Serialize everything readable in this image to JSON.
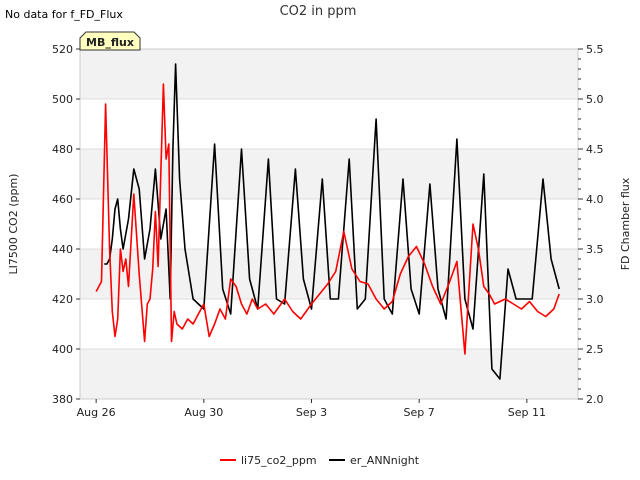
{
  "no_data_message": "No data for f_FD_Flux",
  "badge": {
    "label": "MB_flux"
  },
  "chart_data": {
    "type": "line",
    "title": "CO2 in ppm",
    "xlabel": "",
    "ylabel": "LI7500 CO2 (ppm)",
    "y2label": "FD Chamber flux",
    "xlim_days": [
      -0.6,
      17.9
    ],
    "ylim": [
      380,
      520
    ],
    "y2lim": [
      2.0,
      5.5
    ],
    "grid": true,
    "x_ticks": [
      {
        "day": 0,
        "label": "Aug 26"
      },
      {
        "day": 4,
        "label": "Aug 30"
      },
      {
        "day": 8,
        "label": "Sep 3"
      },
      {
        "day": 12,
        "label": "Sep 7"
      },
      {
        "day": 16,
        "label": "Sep 11"
      }
    ],
    "y_ticks": [
      380,
      400,
      420,
      440,
      460,
      480,
      500,
      520
    ],
    "y_tick_labels": [
      "380",
      "400",
      "420",
      "440",
      "460",
      "480",
      "500",
      "520"
    ],
    "y2_ticks": [
      2.0,
      2.5,
      3.0,
      3.5,
      4.0,
      4.5,
      5.0,
      5.5
    ],
    "y2_tick_labels": [
      "2.0",
      "2.5",
      "3.0",
      "3.5",
      "4.0",
      "4.5",
      "5.0",
      "5.5"
    ],
    "legend_position": "bottom-center",
    "series": [
      {
        "name": "li75_co2_ppm",
        "axis": "left",
        "color": "#ff0000",
        "x": [
          0.0,
          0.2,
          0.35,
          0.5,
          0.6,
          0.7,
          0.8,
          0.9,
          1.0,
          1.1,
          1.2,
          1.4,
          1.6,
          1.8,
          1.9,
          2.0,
          2.1,
          2.2,
          2.3,
          2.5,
          2.6,
          2.7,
          2.8,
          2.9,
          3.0,
          3.2,
          3.4,
          3.6,
          3.8,
          4.0,
          4.2,
          4.4,
          4.6,
          4.8,
          5.0,
          5.2,
          5.4,
          5.6,
          5.8,
          6.0,
          6.3,
          6.6,
          7.0,
          7.3,
          7.6,
          8.0,
          8.3,
          8.6,
          8.9,
          9.2,
          9.5,
          9.8,
          10.1,
          10.4,
          10.7,
          11.0,
          11.3,
          11.6,
          11.9,
          12.2,
          12.5,
          12.8,
          13.1,
          13.4,
          13.7,
          14.0,
          14.2,
          14.4,
          14.6,
          14.8,
          15.0,
          15.2,
          15.5,
          15.8,
          16.1,
          16.4,
          16.7,
          17.0,
          17.2
        ],
        "values": [
          423,
          427,
          498,
          440,
          415,
          405,
          412,
          440,
          431,
          436,
          425,
          462,
          430,
          403,
          418,
          420,
          432,
          455,
          433,
          506,
          476,
          482,
          403,
          415,
          410,
          408,
          412,
          410,
          414,
          418,
          405,
          410,
          416,
          412,
          428,
          425,
          418,
          414,
          420,
          416,
          418,
          414,
          420,
          415,
          412,
          418,
          422,
          426,
          431,
          447,
          432,
          427,
          426,
          420,
          416,
          419,
          430,
          437,
          441,
          434,
          425,
          418,
          426,
          435,
          398,
          450,
          440,
          425,
          422,
          418,
          419,
          420,
          418,
          416,
          419,
          415,
          413,
          416,
          422
        ]
      },
      {
        "name": "er_ANNnight",
        "axis": "right",
        "color": "#000000",
        "x": [
          0.3,
          0.4,
          0.5,
          0.6,
          0.7,
          0.8,
          0.9,
          1.0,
          1.2,
          1.4,
          1.6,
          1.8,
          2.0,
          2.2,
          2.4,
          2.6,
          2.75,
          2.85,
          2.95,
          3.1,
          3.3,
          3.6,
          4.0,
          4.4,
          4.7,
          5.0,
          5.4,
          5.7,
          6.0,
          6.4,
          6.7,
          7.0,
          7.4,
          7.7,
          8.0,
          8.4,
          8.7,
          9.0,
          9.4,
          9.7,
          10.0,
          10.4,
          10.7,
          11.0,
          11.4,
          11.7,
          12.0,
          12.4,
          12.7,
          13.0,
          13.4,
          13.7,
          14.0,
          14.4,
          14.7,
          15.0,
          15.3,
          15.6,
          15.9,
          16.2,
          16.6,
          16.9,
          17.2
        ],
        "values": [
          3.35,
          3.35,
          3.4,
          3.6,
          3.9,
          4.0,
          3.7,
          3.5,
          3.8,
          4.3,
          4.1,
          3.4,
          3.7,
          4.3,
          3.6,
          3.9,
          3.0,
          4.5,
          5.35,
          4.2,
          3.5,
          3.0,
          2.9,
          4.55,
          3.1,
          2.85,
          4.5,
          3.2,
          2.9,
          4.4,
          3.0,
          2.95,
          4.3,
          3.2,
          2.9,
          4.2,
          3.0,
          3.0,
          4.4,
          2.9,
          3.0,
          4.8,
          3.0,
          2.85,
          4.2,
          3.1,
          2.85,
          4.15,
          3.1,
          2.8,
          4.6,
          3.0,
          2.7,
          4.25,
          2.3,
          2.2,
          3.3,
          3.0,
          3.0,
          3.0,
          4.2,
          3.4,
          3.1
        ]
      }
    ]
  }
}
